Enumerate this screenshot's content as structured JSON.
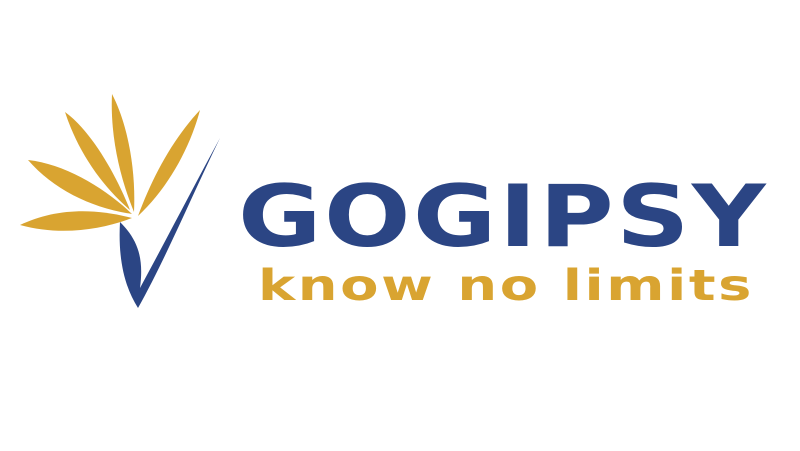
{
  "logo": {
    "brand_name": "GoGipsy",
    "tagline": "know no limits",
    "emblem_icon": "bird-of-paradise-flower-icon",
    "colors": {
      "primary_blue": "#2b4584",
      "accent_gold": "#d9a431",
      "background": "#ffffff"
    }
  }
}
